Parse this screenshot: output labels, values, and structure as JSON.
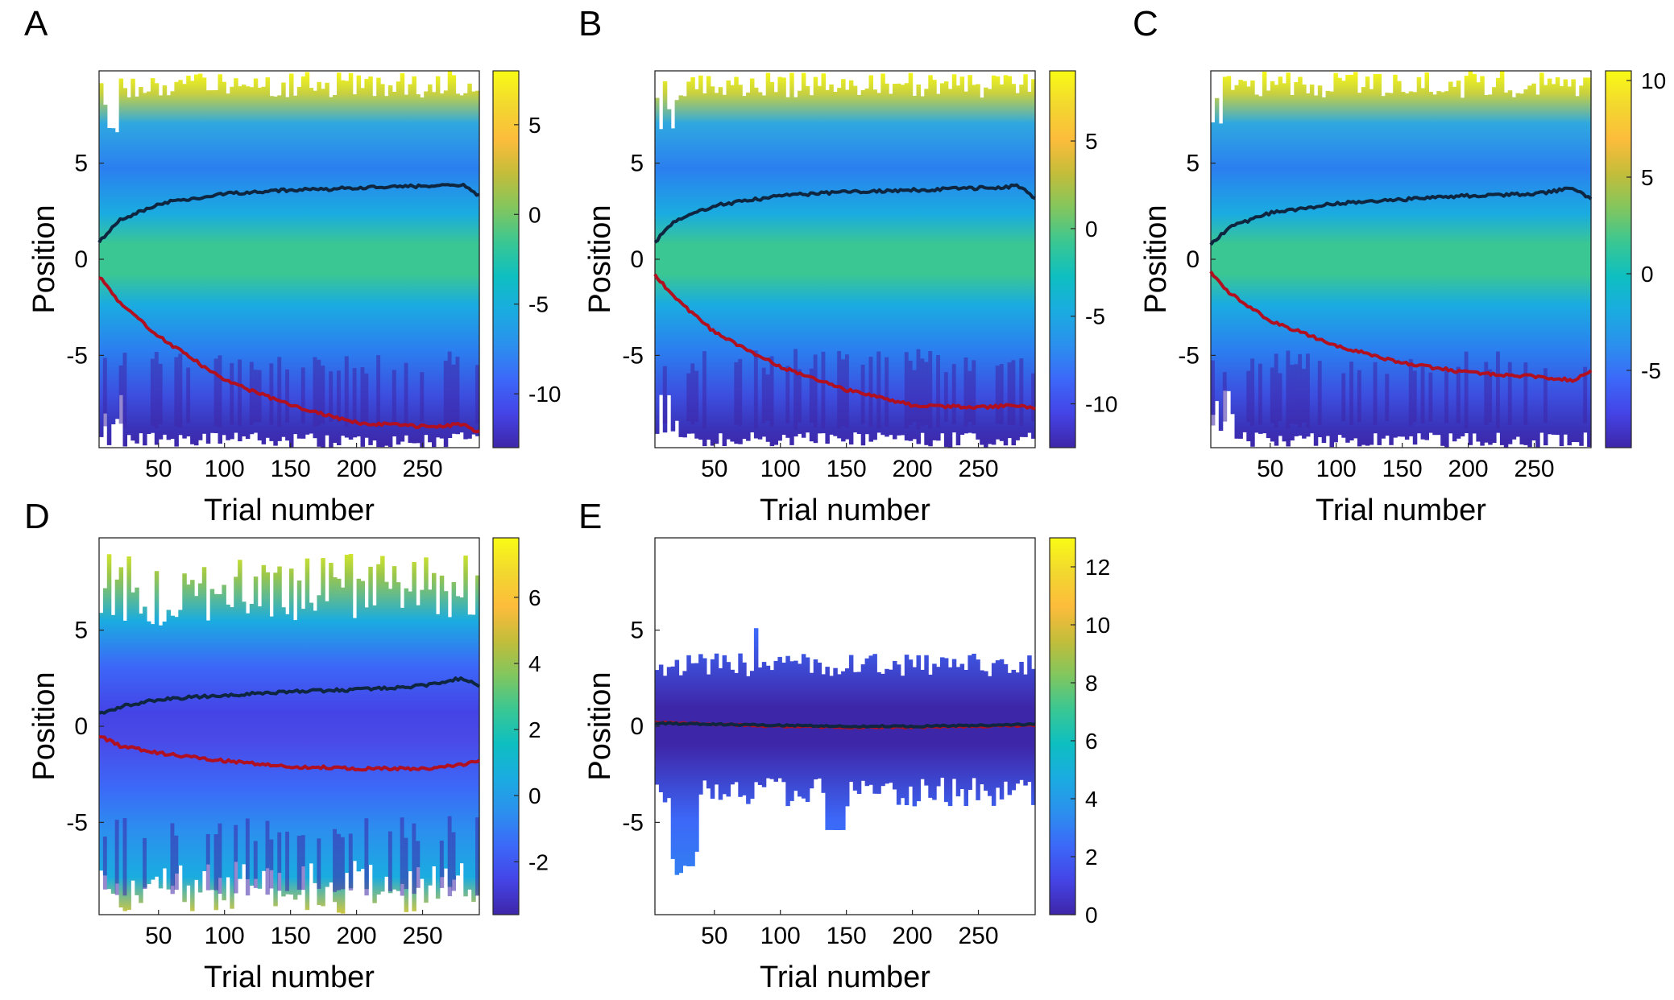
{
  "colors": {
    "parula": [
      "#3e26a8",
      "#4444e6",
      "#3c68f8",
      "#2b90ee",
      "#1aace0",
      "#0ebfc0",
      "#3ac793",
      "#82c65e",
      "#c3bd3a",
      "#fdbc3b",
      "#f2d82f",
      "#f9fb15"
    ],
    "upper_line": "#0f2640",
    "lower_line": "#b01020",
    "axis": "#262626"
  },
  "chart_data": [
    {
      "type": "heatmap",
      "panel": "A",
      "xlabel": "Trial number",
      "ylabel": "Position",
      "x_ticks": [
        "50",
        "100",
        "150",
        "200",
        "250"
      ],
      "y_ticks": [
        "5",
        "0",
        "-5"
      ],
      "xlim": [
        5,
        293
      ],
      "ylim": [
        -9.8,
        9.8
      ],
      "clim": [
        -13,
        8
      ],
      "colorbar_ticks": [
        "5",
        "0",
        "-5",
        "-10"
      ],
      "series": [
        {
          "x": [
            5,
            20,
            50,
            100,
            150,
            200,
            250,
            280,
            293
          ],
          "y": [
            0.9,
            2.0,
            2.9,
            3.4,
            3.6,
            3.7,
            3.8,
            3.9,
            3.3
          ]
        },
        {
          "x": [
            5,
            20,
            50,
            100,
            150,
            200,
            250,
            280,
            293
          ],
          "y": [
            -0.9,
            -2.2,
            -4.0,
            -6.3,
            -7.6,
            -8.5,
            -8.7,
            -8.6,
            -9.0
          ]
        }
      ]
    },
    {
      "type": "heatmap",
      "panel": "B",
      "xlabel": "Trial number",
      "ylabel": "Position",
      "x_ticks": [
        "50",
        "100",
        "150",
        "200",
        "250"
      ],
      "y_ticks": [
        "5",
        "0",
        "-5"
      ],
      "xlim": [
        5,
        293
      ],
      "ylim": [
        -9.8,
        9.8
      ],
      "clim": [
        -12.5,
        9
      ],
      "colorbar_ticks": [
        "5",
        "0",
        "-5",
        "-10"
      ],
      "series": [
        {
          "x": [
            5,
            20,
            50,
            100,
            150,
            200,
            250,
            280,
            293
          ],
          "y": [
            0.9,
            2.0,
            2.8,
            3.3,
            3.5,
            3.6,
            3.7,
            3.8,
            3.2
          ]
        },
        {
          "x": [
            5,
            20,
            50,
            100,
            150,
            200,
            250,
            280,
            293
          ],
          "y": [
            -0.8,
            -2.0,
            -3.8,
            -5.6,
            -6.8,
            -7.6,
            -7.7,
            -7.6,
            -7.8
          ]
        }
      ]
    },
    {
      "type": "heatmap",
      "panel": "C",
      "xlabel": "Trial number",
      "ylabel": "Position",
      "x_ticks": [
        "50",
        "100",
        "150",
        "200",
        "250"
      ],
      "y_ticks": [
        "5",
        "0",
        "-5"
      ],
      "xlim": [
        5,
        293
      ],
      "ylim": [
        -9.8,
        9.8
      ],
      "clim": [
        -9,
        10.5
      ],
      "colorbar_ticks": [
        "10",
        "5",
        "0",
        "-5"
      ],
      "series": [
        {
          "x": [
            5,
            20,
            50,
            100,
            150,
            200,
            250,
            280,
            293
          ],
          "y": [
            0.8,
            1.7,
            2.4,
            2.9,
            3.1,
            3.3,
            3.4,
            3.7,
            3.1
          ]
        },
        {
          "x": [
            5,
            20,
            50,
            100,
            150,
            200,
            250,
            280,
            293
          ],
          "y": [
            -0.7,
            -1.8,
            -3.2,
            -4.5,
            -5.4,
            -5.9,
            -6.1,
            -6.3,
            -5.8
          ]
        }
      ]
    },
    {
      "type": "heatmap",
      "panel": "D",
      "xlabel": "Trial number",
      "ylabel": "Position",
      "x_ticks": [
        "50",
        "100",
        "150",
        "200",
        "250"
      ],
      "y_ticks": [
        "5",
        "0",
        "-5"
      ],
      "xlim": [
        5,
        293
      ],
      "ylim": [
        -9.8,
        9.8
      ],
      "clim": [
        -3.6,
        7.8
      ],
      "colorbar_ticks": [
        "6",
        "4",
        "2",
        "0",
        "-2"
      ],
      "series": [
        {
          "x": [
            5,
            20,
            50,
            100,
            150,
            200,
            250,
            280,
            293
          ],
          "y": [
            0.6,
            1.0,
            1.4,
            1.6,
            1.8,
            1.9,
            2.1,
            2.5,
            2.1
          ]
        },
        {
          "x": [
            5,
            20,
            50,
            100,
            150,
            200,
            250,
            280,
            293
          ],
          "y": [
            -0.5,
            -1.0,
            -1.4,
            -1.8,
            -2.1,
            -2.2,
            -2.2,
            -2.0,
            -1.8
          ]
        }
      ]
    },
    {
      "type": "heatmap",
      "panel": "E",
      "xlabel": "Trial number",
      "ylabel": "Position",
      "x_ticks": [
        "50",
        "100",
        "150",
        "200",
        "250"
      ],
      "y_ticks": [
        "5",
        "0",
        "-5"
      ],
      "xlim": [
        5,
        293
      ],
      "ylim": [
        -9.8,
        9.8
      ],
      "clim": [
        0,
        13
      ],
      "colorbar_ticks": [
        "12",
        "10",
        "8",
        "6",
        "4",
        "2",
        "0"
      ],
      "series": [
        {
          "x": [
            5,
            50,
            100,
            150,
            200,
            250,
            293
          ],
          "y": [
            0.15,
            0.1,
            0.05,
            0.0,
            0.0,
            0.05,
            0.1
          ]
        },
        {
          "x": [
            5,
            50,
            100,
            150,
            200,
            250,
            293
          ],
          "y": [
            0.2,
            0.1,
            0.0,
            -0.05,
            -0.05,
            0.0,
            0.05
          ]
        }
      ]
    }
  ]
}
